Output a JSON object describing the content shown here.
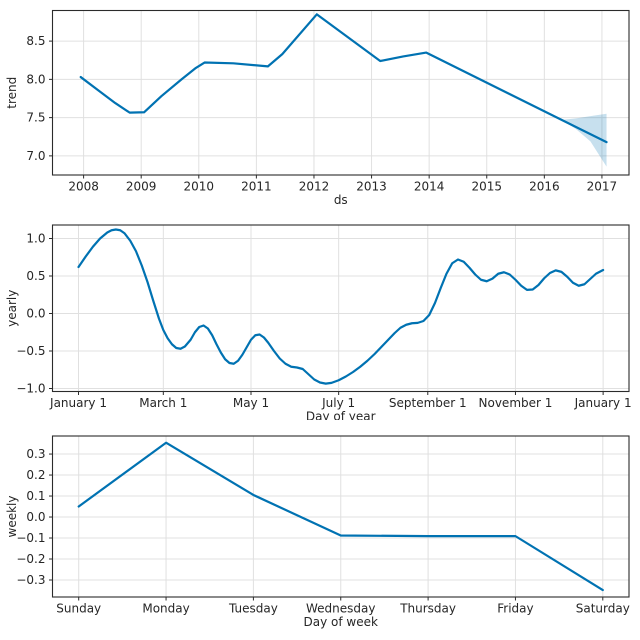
{
  "figure": {
    "background": "#ffffff",
    "line_color": "#0072B2",
    "band_color": "#0072B2",
    "band_opacity": 0.22,
    "grid_color": "#e0e0e0",
    "spine_color": "#2b2b2b",
    "text_color": "#262626"
  },
  "chart_data": [
    {
      "type": "line",
      "id": "trend",
      "title": "",
      "xlabel": "ds",
      "ylabel": "trend",
      "grid": true,
      "legend_position": "none",
      "xlim": [
        2007.46,
        2017.47
      ],
      "ylim": [
        6.75,
        8.9
      ],
      "xticks": [
        2008,
        2009,
        2010,
        2011,
        2012,
        2013,
        2014,
        2015,
        2016,
        2017
      ],
      "xticklabels": [
        "2008",
        "2009",
        "2010",
        "2011",
        "2012",
        "2013",
        "2014",
        "2015",
        "2016",
        "2017"
      ],
      "yticks": [
        7.0,
        7.5,
        8.0,
        8.5
      ],
      "yticklabels": [
        "7.0",
        "7.5",
        "8.0",
        "8.5"
      ],
      "series": [
        {
          "name": "trend",
          "x": [
            2007.95,
            2008.25,
            2008.55,
            2008.8,
            2009.05,
            2009.35,
            2009.7,
            2009.95,
            2010.1,
            2010.6,
            2011.2,
            2011.45,
            2012.05,
            2013.15,
            2013.55,
            2013.95,
            2016.3,
            2017.08
          ],
          "y": [
            8.03,
            7.86,
            7.69,
            7.565,
            7.57,
            7.78,
            8.0,
            8.15,
            8.22,
            8.21,
            8.17,
            8.33,
            8.85,
            8.24,
            8.3,
            8.35,
            7.47,
            7.18
          ]
        }
      ],
      "band": {
        "name": "trend-uncertainty-interval",
        "x": [
          2016.3,
          2016.55,
          2016.8,
          2017.08
        ],
        "upper": [
          7.47,
          7.49,
          7.52,
          7.55
        ],
        "lower": [
          7.47,
          7.35,
          7.19,
          6.86
        ]
      }
    },
    {
      "type": "line",
      "id": "yearly",
      "title": "",
      "xlabel": "Day of year",
      "ylabel": "yearly",
      "grid": true,
      "legend_position": "none",
      "xlim": [
        -18.1,
        383.0
      ],
      "ylim": [
        -1.04,
        1.18
      ],
      "xticks": [
        0,
        59,
        120,
        181,
        243,
        304,
        365
      ],
      "xticklabels": [
        "January 1",
        "March 1",
        "May 1",
        "July 1",
        "September 1",
        "November 1",
        "January 1"
      ],
      "yticks": [
        -1.0,
        -0.5,
        0.0,
        0.5,
        1.0
      ],
      "yticklabels": [
        "−1.0",
        "−0.5",
        "0.0",
        "0.5",
        "1.0"
      ],
      "series": [
        {
          "name": "yearly",
          "x": [
            0,
            5,
            10,
            15,
            20,
            23,
            26,
            29,
            32,
            36,
            40,
            44,
            48,
            52,
            56,
            59,
            62,
            65,
            68,
            71,
            74,
            78,
            81,
            84,
            87,
            90,
            93,
            96,
            99,
            102,
            105,
            108,
            111,
            114,
            117,
            120,
            123,
            126,
            129,
            132,
            136,
            140,
            144,
            148,
            152,
            156,
            160,
            164,
            168,
            172,
            176,
            181,
            186,
            191,
            196,
            201,
            206,
            211,
            216,
            220,
            224,
            228,
            232,
            236,
            240,
            244,
            248,
            252,
            256,
            260,
            264,
            268,
            272,
            276,
            280,
            284,
            288,
            292,
            296,
            300,
            304,
            308,
            312,
            316,
            320,
            324,
            328,
            332,
            336,
            340,
            344,
            348,
            352,
            356,
            360,
            365
          ],
          "y": [
            0.62,
            0.76,
            0.89,
            1.0,
            1.08,
            1.11,
            1.12,
            1.11,
            1.07,
            0.97,
            0.83,
            0.64,
            0.42,
            0.17,
            -0.07,
            -0.22,
            -0.33,
            -0.41,
            -0.46,
            -0.47,
            -0.44,
            -0.35,
            -0.25,
            -0.18,
            -0.16,
            -0.2,
            -0.29,
            -0.41,
            -0.52,
            -0.61,
            -0.66,
            -0.67,
            -0.63,
            -0.55,
            -0.45,
            -0.35,
            -0.29,
            -0.28,
            -0.32,
            -0.39,
            -0.5,
            -0.6,
            -0.67,
            -0.71,
            -0.72,
            -0.74,
            -0.81,
            -0.88,
            -0.92,
            -0.935,
            -0.925,
            -0.89,
            -0.84,
            -0.78,
            -0.71,
            -0.63,
            -0.54,
            -0.44,
            -0.34,
            -0.26,
            -0.19,
            -0.15,
            -0.13,
            -0.125,
            -0.1,
            -0.02,
            0.14,
            0.34,
            0.53,
            0.67,
            0.72,
            0.69,
            0.61,
            0.52,
            0.45,
            0.43,
            0.465,
            0.53,
            0.55,
            0.52,
            0.45,
            0.37,
            0.315,
            0.32,
            0.38,
            0.47,
            0.54,
            0.575,
            0.555,
            0.49,
            0.41,
            0.37,
            0.39,
            0.46,
            0.53,
            0.58
          ]
        }
      ],
      "band": null
    },
    {
      "type": "line",
      "id": "weekly",
      "title": "",
      "xlabel": "Day of week",
      "ylabel": "weekly",
      "grid": true,
      "legend_position": "none",
      "xlim": [
        -0.3,
        6.3
      ],
      "ylim": [
        -0.381,
        0.386
      ],
      "xticks": [
        0,
        1,
        2,
        3,
        4,
        5,
        6
      ],
      "xticklabels": [
        "Sunday",
        "Monday",
        "Tuesday",
        "Wednesday",
        "Thursday",
        "Friday",
        "Saturday"
      ],
      "yticks": [
        -0.3,
        -0.2,
        -0.1,
        0.0,
        0.1,
        0.2,
        0.3
      ],
      "yticklabels": [
        "−0.3",
        "−0.2",
        "−0.1",
        "0.0",
        "0.1",
        "0.2",
        "0.3"
      ],
      "series": [
        {
          "name": "weekly",
          "x": [
            0,
            1,
            2,
            3,
            4,
            5,
            6
          ],
          "y": [
            0.05,
            0.354,
            0.105,
            -0.088,
            -0.091,
            -0.091,
            -0.348
          ]
        }
      ],
      "band": null
    }
  ]
}
